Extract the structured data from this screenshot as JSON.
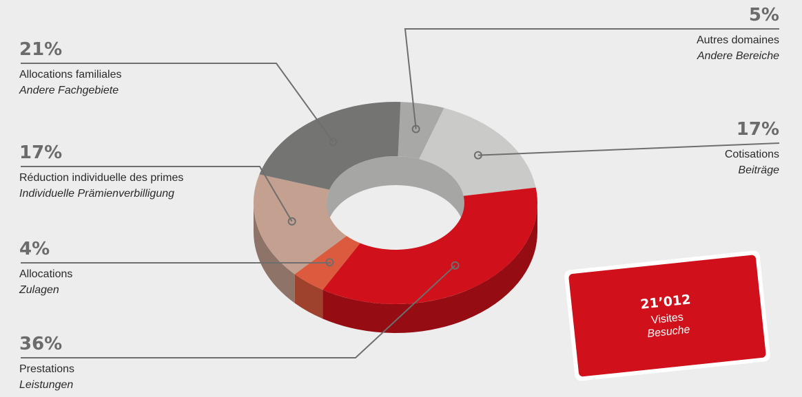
{
  "chart_data": {
    "type": "pie",
    "donut": true,
    "slices": [
      {
        "label": "Autres domaines",
        "label_de": "Andere Bereiche",
        "value": 5,
        "value_label": "5%",
        "color": "#a8a8a6"
      },
      {
        "label": "Cotisations",
        "label_de": "Beiträge",
        "value": 17,
        "value_label": "17%",
        "color": "#cacac8"
      },
      {
        "label": "Prestations",
        "label_de": "Leistungen",
        "value": 36,
        "value_label": "36%",
        "color": "#d0101a"
      },
      {
        "label": "Allocations",
        "label_de": "Zulagen",
        "value": 4,
        "value_label": "4%",
        "color": "#dc5a3e"
      },
      {
        "label": "Réduction individuelle des primes",
        "label_de": "Individuelle Prämienverbilligung",
        "value": 17,
        "value_label": "17%",
        "color": "#c4a090"
      },
      {
        "label": "Allocations familiales",
        "label_de": "Andere Fachgebiete",
        "value": 21,
        "value_label": "21%",
        "color": "#747473"
      }
    ]
  },
  "badge": {
    "value": "21’012",
    "label": "Visites",
    "label_de": "Besuche",
    "color": "#d0101a"
  }
}
